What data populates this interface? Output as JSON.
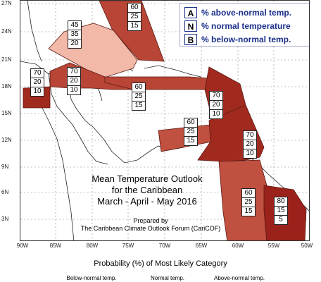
{
  "legend": {
    "items": [
      {
        "letter": "A",
        "text": "% above-normal temp."
      },
      {
        "letter": "N",
        "text": "% normal temperature"
      },
      {
        "letter": "B",
        "text": "% below-normal temp."
      }
    ]
  },
  "title": {
    "line1": "Mean Temperature Outlook",
    "line2": "for the Caribbean",
    "line3": "March - April - May 2016"
  },
  "prepared": {
    "line1": "Prepared by",
    "line2": "The Caribbean Climate Outlook Forum (CariCOF)"
  },
  "lat_labels": [
    "27N",
    "24N",
    "21N",
    "18N",
    "15N",
    "12N",
    "9N",
    "6N",
    "3N"
  ],
  "lon_labels": [
    "90W",
    "85W",
    "80W",
    "75W",
    "70W",
    "65W",
    "60W",
    "55W",
    "50W"
  ],
  "regions": [
    {
      "name": "north-atlantic",
      "values": [
        "60",
        "25",
        "15"
      ],
      "color": "#b84535"
    },
    {
      "name": "bahamas",
      "values": [
        "45",
        "35",
        "20"
      ],
      "color": "#f2b8a8"
    },
    {
      "name": "belize",
      "values": [
        "70",
        "20",
        "10"
      ],
      "color": "#a12a1f"
    },
    {
      "name": "cayman-jamaica",
      "values": [
        "70",
        "20",
        "10"
      ],
      "color": "#b84535"
    },
    {
      "name": "hispaniola",
      "values": [
        "60",
        "25",
        "15"
      ],
      "color": "#b84535"
    },
    {
      "name": "leeward-islands",
      "values": [
        "70",
        "20",
        "10"
      ],
      "color": "#a12a1f"
    },
    {
      "name": "abc-islands",
      "values": [
        "60",
        "25",
        "15"
      ],
      "color": "#c0503f"
    },
    {
      "name": "windward-islands",
      "values": [
        "70",
        "20",
        "10"
      ],
      "color": "#a12a1f"
    },
    {
      "name": "guyana",
      "values": [
        "60",
        "25",
        "15"
      ],
      "color": "#c0503f"
    },
    {
      "name": "suriname-guiana",
      "values": [
        "80",
        "15",
        "5"
      ],
      "color": "#9a221a"
    }
  ],
  "bottom": {
    "caption": "Probability (%) of Most Likely Category",
    "categories": [
      "Below-normal temp.",
      "Normal temp.",
      "Above-normal temp."
    ]
  }
}
